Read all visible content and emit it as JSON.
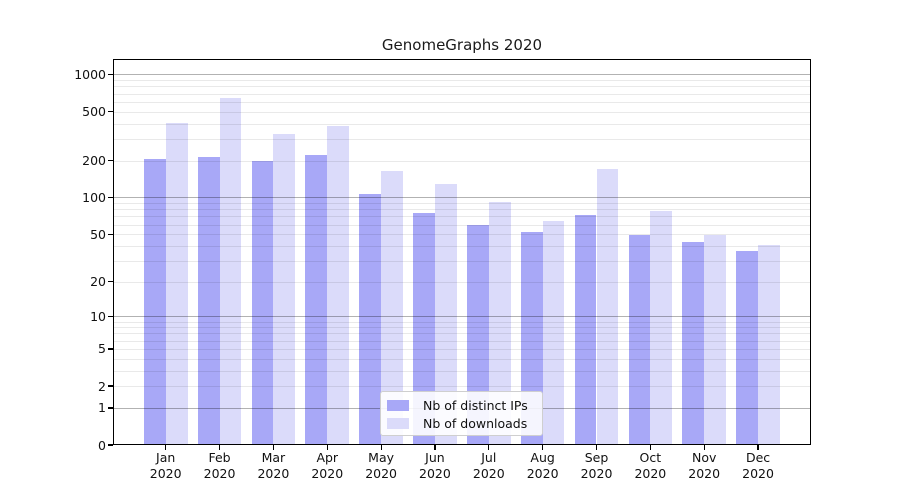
{
  "figure": {
    "title": "GenomeGraphs 2020"
  },
  "chart_data": {
    "type": "bar",
    "title": "GenomeGraphs 2020",
    "categories": [
      "Jan",
      "Feb",
      "Mar",
      "Apr",
      "May",
      "Jun",
      "Jul",
      "Aug",
      "Sep",
      "Oct",
      "Nov",
      "Dec"
    ],
    "year_label": "2020",
    "series": [
      {
        "name": "Nb of distinct IPs",
        "color": "#a8a8f7",
        "values": [
          205,
          213,
          197,
          222,
          107,
          75,
          60,
          52,
          72,
          49,
          43,
          36
        ]
      },
      {
        "name": "Nb of downloads",
        "color": "#dbdbfa",
        "values": [
          405,
          640,
          330,
          380,
          165,
          128,
          92,
          64,
          172,
          77,
          49,
          41
        ]
      }
    ],
    "y_scale": "log1p",
    "y_ticks": [
      0,
      1,
      2,
      5,
      10,
      20,
      50,
      100,
      200,
      500,
      1000
    ],
    "ylim": [
      0,
      1335
    ],
    "grid": true,
    "legend_position": "lower-center-inside",
    "axis_color": "#000000",
    "major_grid_color": "#b2b2b2",
    "minor_grid_color": "#e8e8e8"
  }
}
